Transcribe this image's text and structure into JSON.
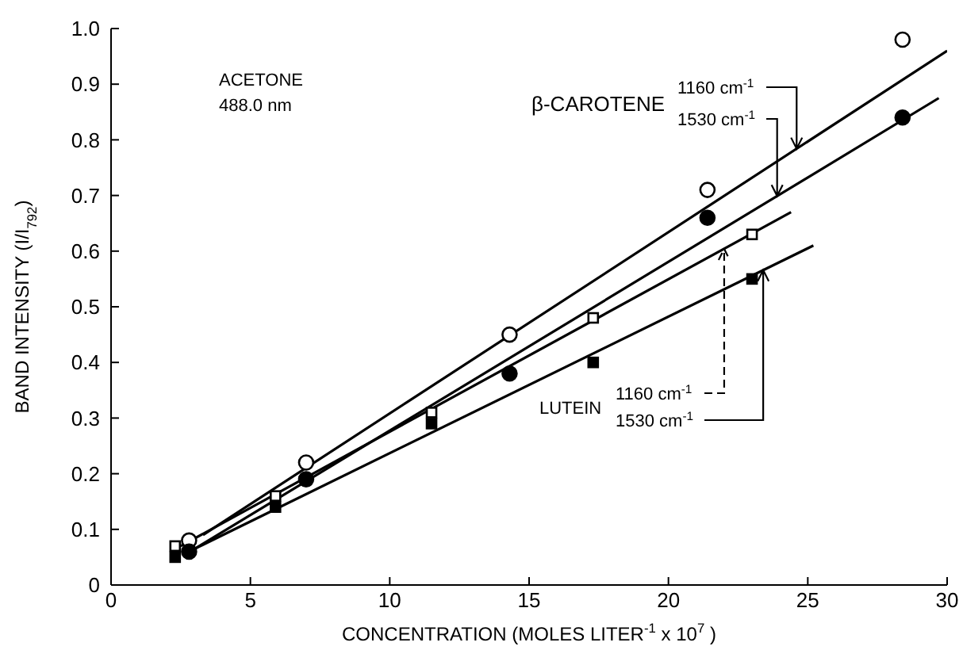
{
  "chart_data": {
    "type": "scatter",
    "xlabel": "CONCENTRATION (MOLES LITER$^{-1}$ x 10$^{7}$ )",
    "ylabel": "BAND INTENSITY (I/I$_{792}$)",
    "xlim": [
      0,
      30
    ],
    "xticks": [
      0,
      5,
      10,
      15,
      20,
      25,
      30
    ],
    "ylim": [
      0,
      1.0
    ],
    "yticks": [
      0,
      0.1,
      0.2,
      0.3,
      0.4,
      0.5,
      0.6,
      0.7,
      0.8,
      0.9,
      {
        "value": 1.0,
        "label": "1.0"
      }
    ],
    "annotations": [
      "ACETONE",
      "488.0 nm",
      "β-CAROTENE",
      {
        "text": "1160 cm$^{-1}$",
        "x": 24.6,
        "y": 0.784
      },
      {
        "text": "1530 cm$^{-1}$",
        "x": 23.9,
        "y": 0.699
      },
      "LUTEIN",
      {
        "text": "1160 cm$^{-1}$",
        "x": 22.0,
        "y": 0.604
      },
      {
        "text": "1530 cm$^{-1}$",
        "x": 23.4,
        "y": 0.566
      }
    ],
    "series": [
      {
        "marker": "circle",
        "color": "#000000",
        "x": [
          2.8,
          7.0,
          14.3,
          21.4,
          28.4
        ],
        "values": [
          0.08,
          0.22,
          0.45,
          0.71,
          0.98
        ]
      },
      {
        "marker": "circle",
        "color": "#000000",
        "x": [
          2.8,
          7.0,
          14.3,
          21.4,
          28.4
        ],
        "values": [
          0.06,
          0.19,
          0.38,
          0.66,
          0.84
        ]
      },
      {
        "marker": "square",
        "color": "#000000",
        "x": [
          2.3,
          5.9,
          11.5,
          17.3,
          23.0
        ],
        "values": [
          0.07,
          0.16,
          0.31,
          0.48,
          0.63
        ]
      },
      {
        "marker": "square",
        "color": "#000000",
        "x": [
          2.3,
          5.9,
          11.5,
          17.3,
          23.0
        ],
        "values": [
          0.05,
          0.14,
          0.29,
          0.4,
          0.55
        ]
      },
      {
        "type": "line",
        "marker": "none",
        "line_style": "solid",
        "color": "#000000",
        "x": [
          3.3,
          30.0
        ],
        "values": [
          0.09,
          0.96
        ]
      },
      {
        "type": "line",
        "marker": "none",
        "line_style": "solid",
        "color": "#000000",
        "x": [
          3.0,
          29.7
        ],
        "values": [
          0.065,
          0.875
        ]
      },
      {
        "type": "line",
        "marker": "none",
        "line_style": "solid",
        "color": "#000000",
        "x": [
          2.5,
          24.4
        ],
        "values": [
          0.07,
          0.67
        ]
      },
      {
        "type": "line",
        "marker": "none",
        "line_style": "solid",
        "color": "#000000",
        "x": [
          3.0,
          25.2
        ],
        "values": [
          0.065,
          0.61
        ]
      }
    ]
  }
}
